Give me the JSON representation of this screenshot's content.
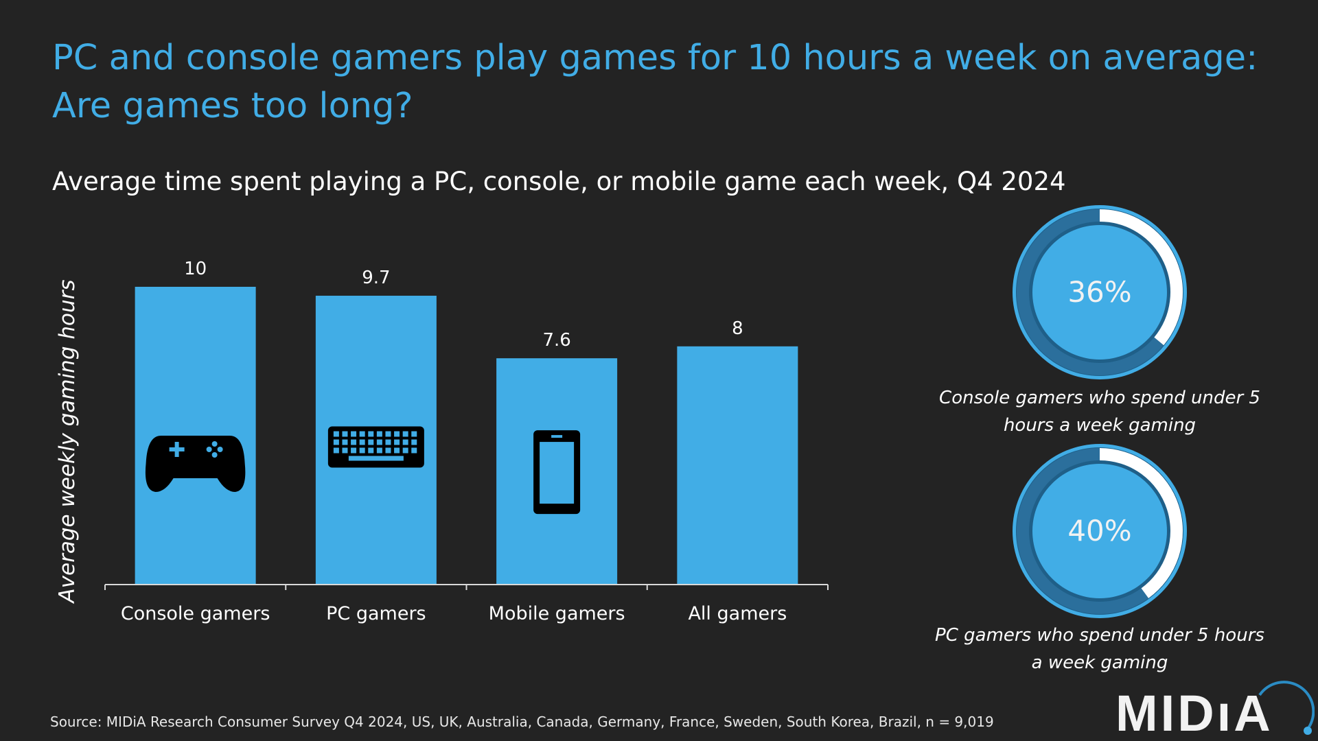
{
  "title": [
    "PC and console gamers play games for 10 hours a week on average:",
    "Are games too long?"
  ],
  "subtitle": "Average time spent playing a PC, console, or mobile game each week, Q4 2024",
  "chart_data": {
    "type": "bar",
    "categories": [
      "Console gamers",
      "PC gamers",
      "Mobile gamers",
      "All gamers"
    ],
    "values": [
      10,
      9.7,
      7.6,
      8
    ],
    "value_labels": [
      "10",
      "9.7",
      "7.6",
      "8"
    ],
    "ylabel": "Average weekly gaming hours",
    "ylim": [
      0,
      10
    ],
    "grid": false,
    "bar_icons": [
      "gamepad-icon",
      "keyboard-icon",
      "smartphone-icon",
      ""
    ],
    "bar_color": "#41ade6"
  },
  "donuts": [
    {
      "value": 36,
      "label": "36%",
      "caption": [
        "Console gamers who spend under 5",
        "hours a week gaming"
      ]
    },
    {
      "value": 40,
      "label": "40%",
      "caption": [
        "PC gamers who spend under 5 hours",
        "a week gaming"
      ]
    }
  ],
  "colors": {
    "background": "#232323",
    "accent": "#41ade6",
    "track": "#2b6f9c"
  },
  "source": "Source: MIDiA Research Consumer Survey Q4 2024, US, UK, Australia, Canada, Germany, France, Sweden, South Korea, Brazil, n = 9,019",
  "logo": "MIDiA"
}
